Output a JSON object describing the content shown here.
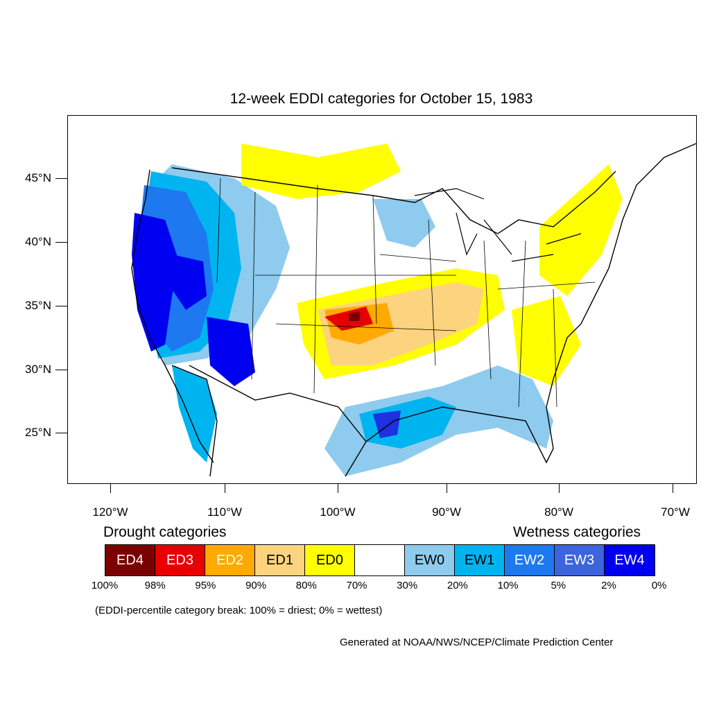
{
  "title": "12-week EDDI categories for October 15, 1983",
  "lat_labels": [
    "45°N",
    "40°N",
    "35°N",
    "30°N",
    "25°N"
  ],
  "lon_labels": [
    "120°W",
    "110°W",
    "100°W",
    "90°W",
    "80°W",
    "70°W"
  ],
  "legend": {
    "drought_heading": "Drought categories",
    "wetness_heading": "Wetness categories",
    "categories": [
      {
        "label": "ED4",
        "color": "#7a0000",
        "text_color": "#ffffff"
      },
      {
        "label": "ED3",
        "color": "#e60000",
        "text_color": "#ffffff"
      },
      {
        "label": "ED2",
        "color": "#ffaa00",
        "text_color": "#ffffff"
      },
      {
        "label": "ED1",
        "color": "#fcd37f",
        "text_color": "#000000"
      },
      {
        "label": "ED0",
        "color": "#ffff00",
        "text_color": "#000000"
      },
      {
        "label": "",
        "color": "#ffffff",
        "text_color": "#000000"
      },
      {
        "label": "EW0",
        "color": "#8ecbee",
        "text_color": "#000000"
      },
      {
        "label": "EW1",
        "color": "#00b4f0",
        "text_color": "#000000"
      },
      {
        "label": "EW2",
        "color": "#1e78f0",
        "text_color": "#ffffff"
      },
      {
        "label": "EW3",
        "color": "#3c64dc",
        "text_color": "#ffffff"
      },
      {
        "label": "EW4",
        "color": "#0000f0",
        "text_color": "#ffffff"
      }
    ],
    "percentiles": [
      "100%",
      "98%",
      "95%",
      "90%",
      "80%",
      "70%",
      "30%",
      "20%",
      "10%",
      "5%",
      "2%",
      "0%"
    ]
  },
  "note": "(EDDI-percentile category break: 100% = driest; 0% = wettest)",
  "credit": "Generated at NOAA/NWS/NCEP/Climate Prediction Center"
}
